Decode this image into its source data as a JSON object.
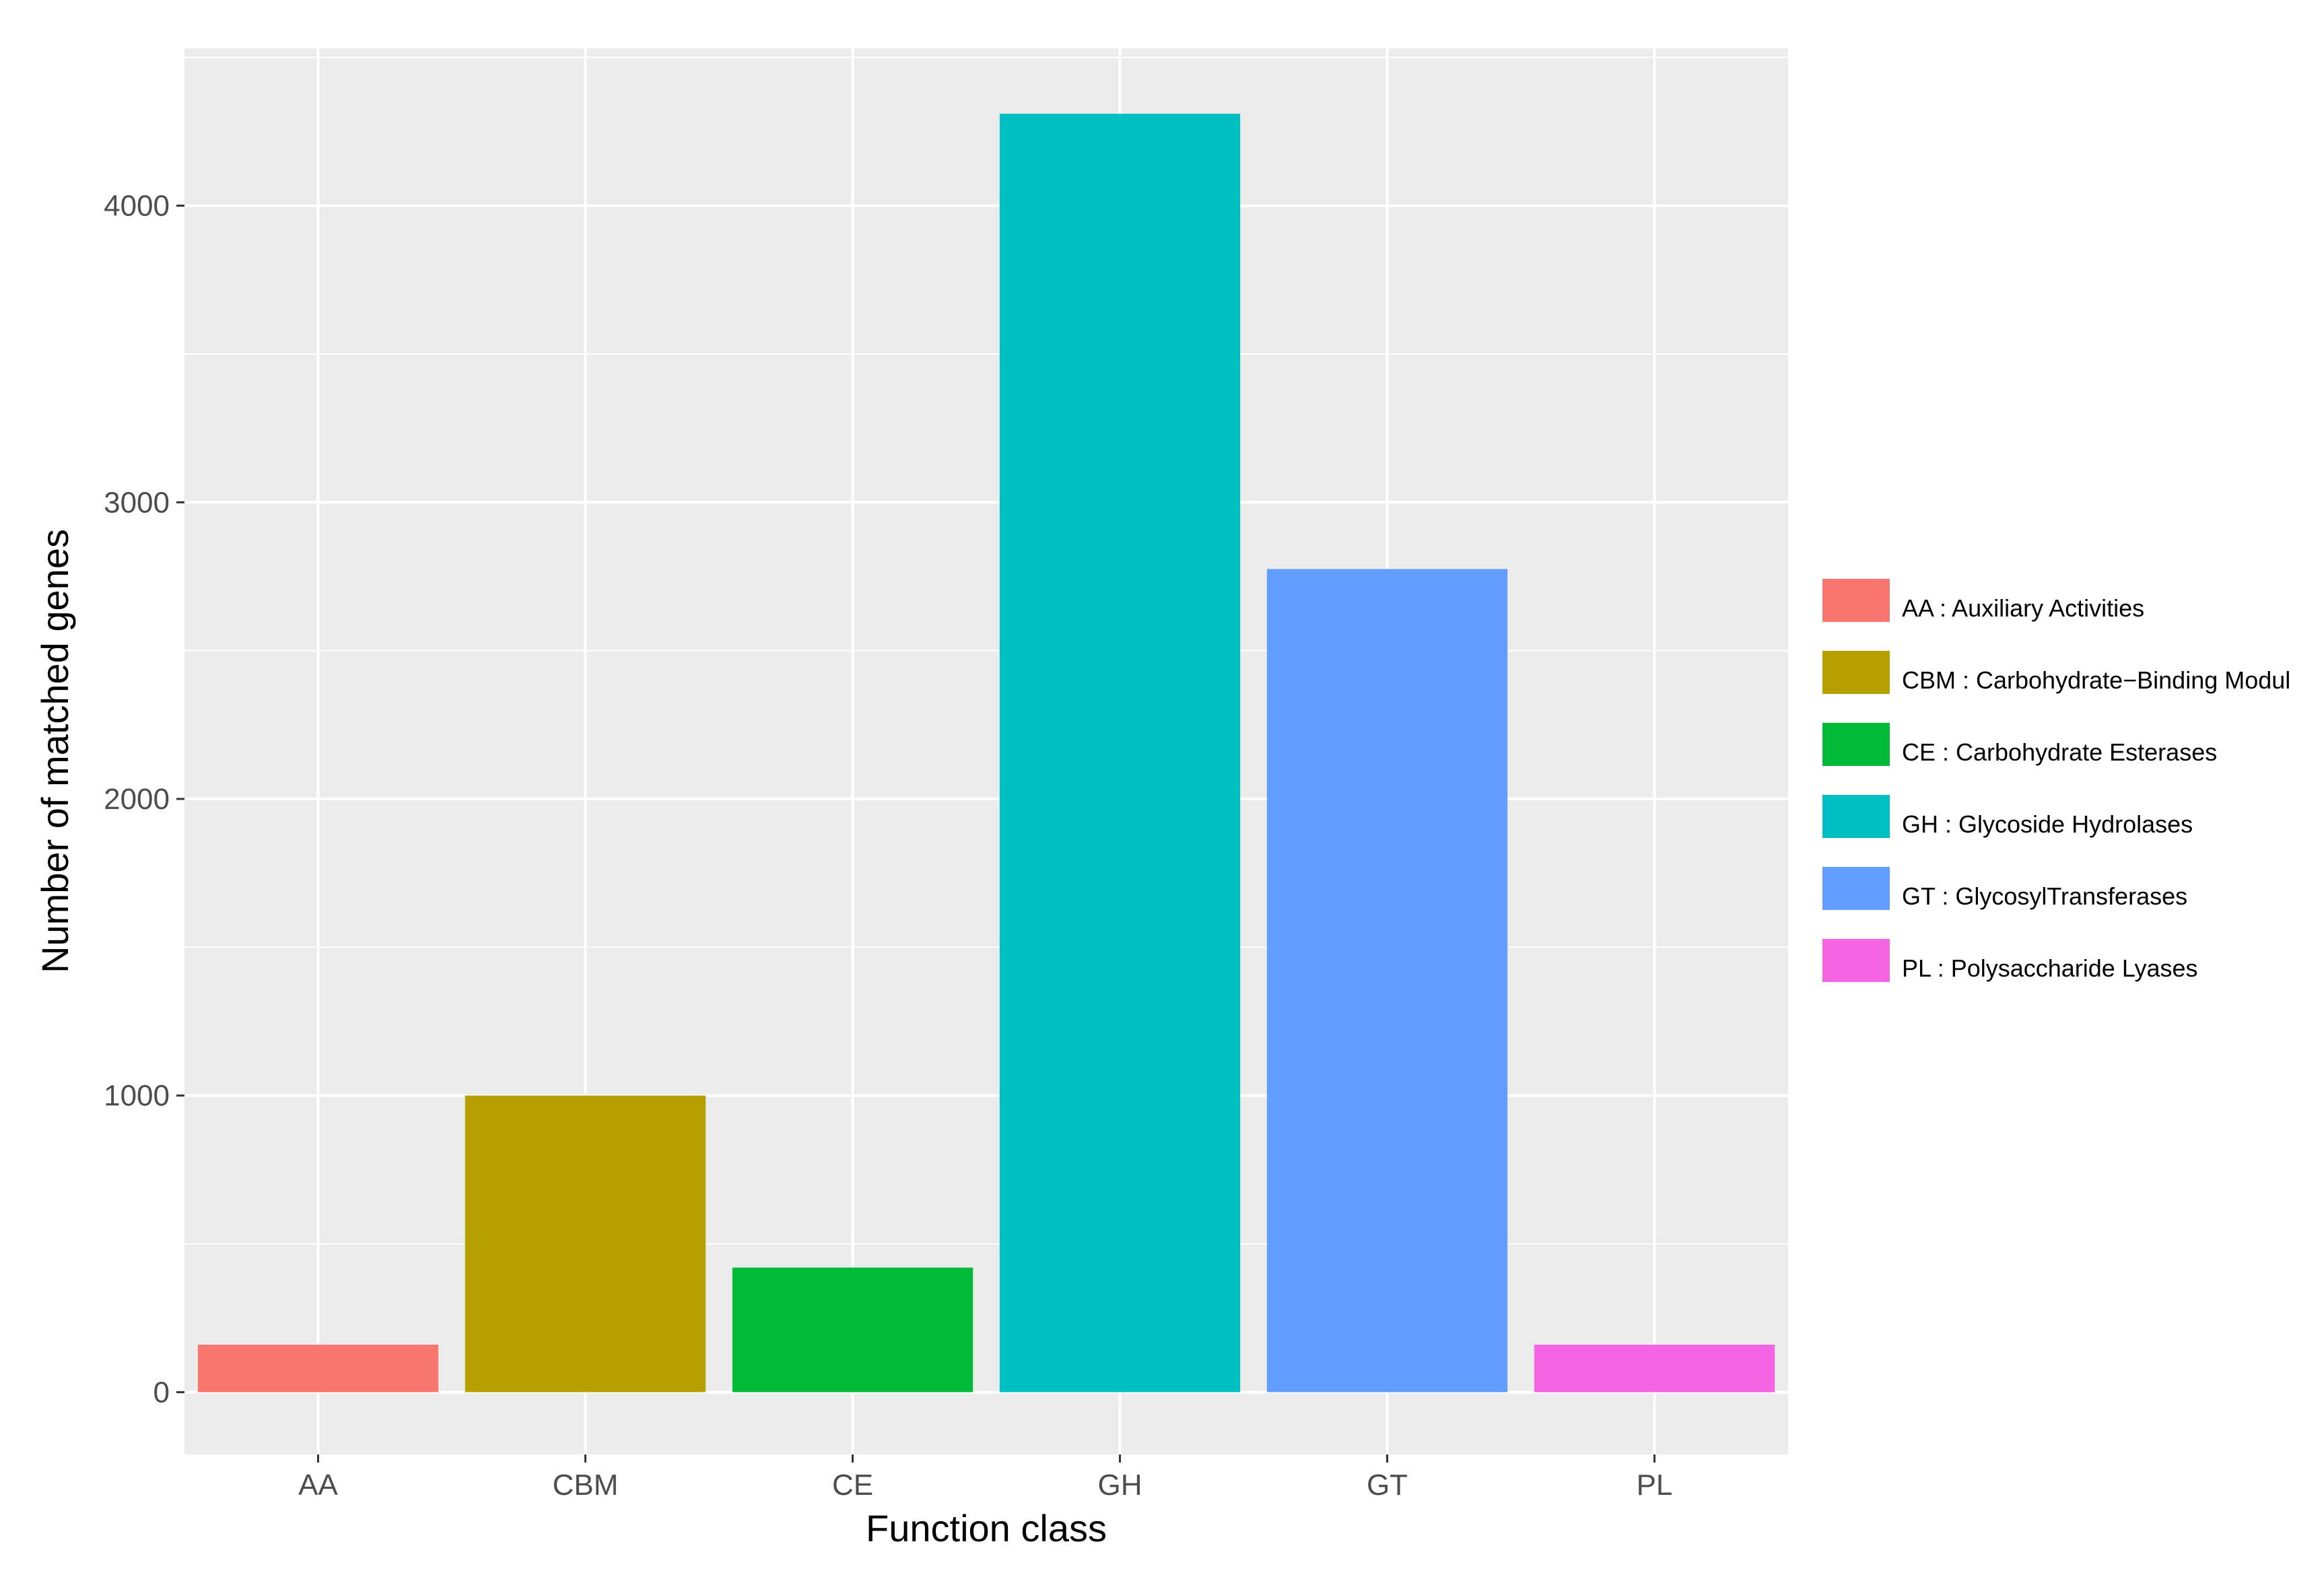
{
  "chart_data": {
    "type": "bar",
    "title": "",
    "xlabel": "Function class",
    "ylabel": "Number of matched genes",
    "categories": [
      "AA",
      "CBM",
      "CE",
      "GH",
      "GT",
      "PL"
    ],
    "values": [
      160,
      1000,
      420,
      4310,
      2775,
      160
    ],
    "ylim": [
      -210,
      4530
    ],
    "yticks": [
      0,
      1000,
      2000,
      3000,
      4000
    ],
    "grid": true,
    "legend_position": "right",
    "legend": [
      {
        "label": "AA : Auxiliary Activities",
        "color": "#F8766D"
      },
      {
        "label": "CBM : Carbohydrate−Binding Modul",
        "color": "#B79F00"
      },
      {
        "label": "CE : Carbohydrate Esterases",
        "color": "#00BA38"
      },
      {
        "label": "GH : Glycoside Hydrolases",
        "color": "#00BFC4"
      },
      {
        "label": "GT : GlycosylTransferases",
        "color": "#619CFF"
      },
      {
        "label": "PL : Polysaccharide Lyases",
        "color": "#F564E3"
      }
    ],
    "colors": [
      "#F8766D",
      "#B79F00",
      "#00BA38",
      "#00BFC4",
      "#619CFF",
      "#F564E3"
    ]
  }
}
